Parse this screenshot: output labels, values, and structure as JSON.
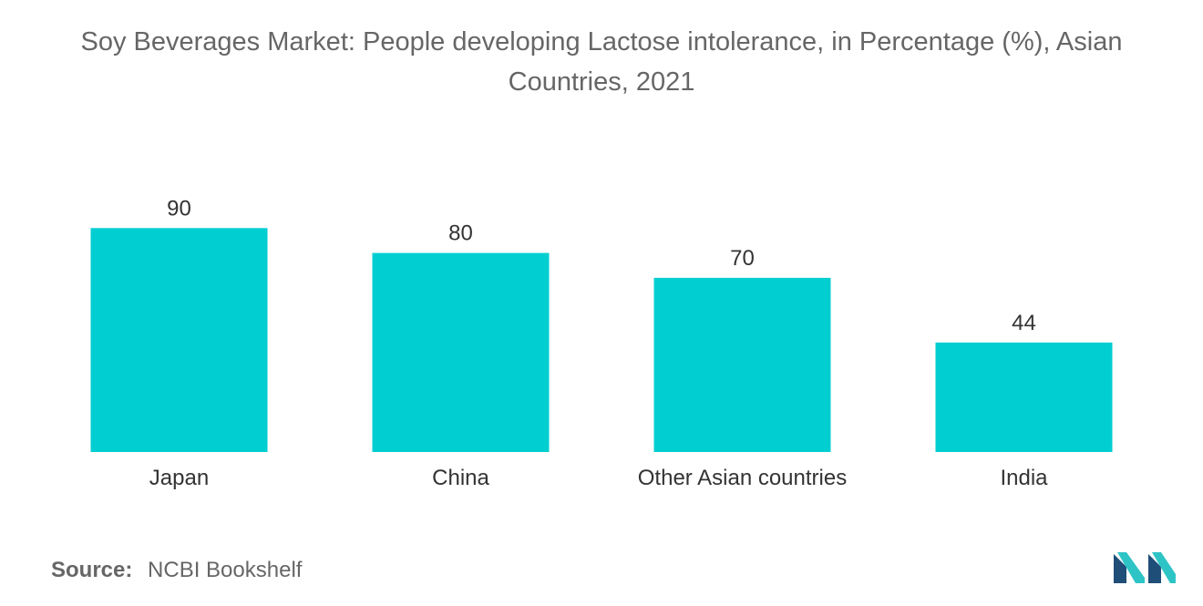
{
  "chart_data": {
    "type": "bar",
    "title": "Soy Beverages Market: People developing Lactose intolerance, in Percentage (%), Asian Countries, 2021",
    "categories": [
      "Japan",
      "China",
      "Other Asian countries",
      "India"
    ],
    "values": [
      90,
      80,
      70,
      44
    ],
    "xlabel": "",
    "ylabel": "",
    "ylim": [
      0,
      100
    ],
    "grid": false,
    "legend": "none",
    "bar_color": "#00ced1"
  },
  "source": {
    "label": "Source:",
    "text": "NCBI Bookshelf"
  },
  "colors": {
    "text": "#666666",
    "label": "#333333",
    "logo_dark": "#1f4e79",
    "logo_light": "#2ec4c6"
  }
}
